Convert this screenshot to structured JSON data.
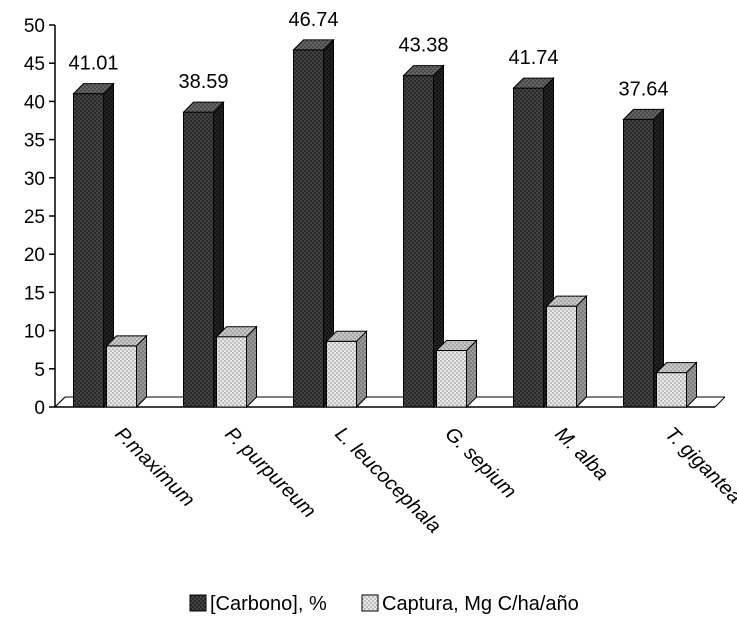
{
  "chart_data": {
    "type": "bar",
    "style": "3d-clustered-column",
    "categories": [
      "P.maximum",
      "P. purpureum",
      "L. leucocephala",
      "G. sepium",
      "M. alba",
      "T. gigantea"
    ],
    "series": [
      {
        "name": "[Carbono], %",
        "values": [
          41.01,
          38.59,
          46.74,
          43.38,
          41.74,
          37.64
        ],
        "data_labels": [
          "41.01",
          "38.59",
          "46.74",
          "43.38",
          "41.74",
          "37.64"
        ],
        "pattern": "dark-dotted",
        "color_front": "#2a2a2a",
        "color_side": "#151515",
        "color_top": "#5a5a5a"
      },
      {
        "name": "Captura, Mg C/ha/año",
        "values": [
          8.0,
          9.2,
          8.6,
          7.4,
          13.2,
          4.5
        ],
        "pattern": "light-dotted",
        "color_front": "#d4d4d4",
        "color_side": "#8c8c8c",
        "color_top": "#b8b8b8"
      }
    ],
    "ylim": [
      0,
      50
    ],
    "yticks": [
      "0",
      "5",
      "10",
      "15",
      "20",
      "25",
      "30",
      "35",
      "40",
      "45",
      "50"
    ],
    "title": "",
    "xlabel": "",
    "ylabel": "",
    "grid": false,
    "legend_position": "bottom"
  }
}
